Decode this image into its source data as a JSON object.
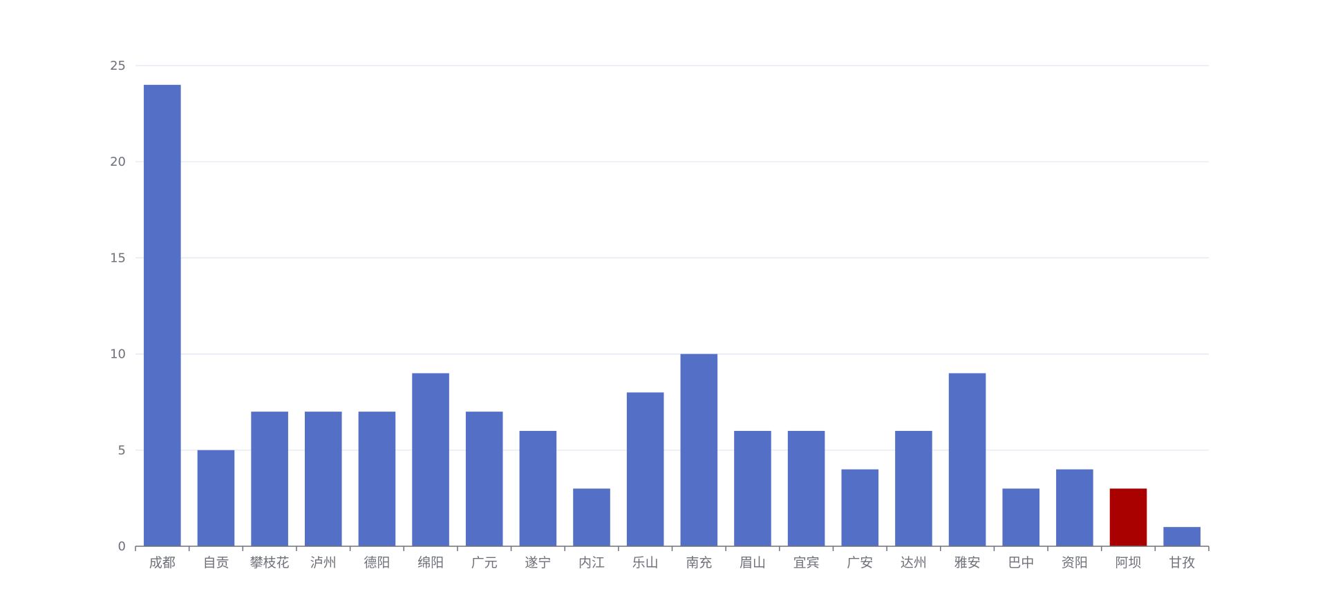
{
  "chart_data": {
    "type": "bar",
    "title": "",
    "xlabel": "",
    "ylabel": "",
    "categories": [
      "成都",
      "自贡",
      "攀枝花",
      "泸州",
      "德阳",
      "绵阳",
      "广元",
      "遂宁",
      "内江",
      "乐山",
      "南充",
      "眉山",
      "宜宾",
      "广安",
      "达州",
      "雅安",
      "巴中",
      "资阳",
      "阿坝",
      "甘孜"
    ],
    "values": [
      24,
      5,
      7,
      7,
      7,
      9,
      7,
      6,
      3,
      8,
      10,
      6,
      6,
      4,
      6,
      9,
      3,
      4,
      3,
      1
    ],
    "ylim": [
      0,
      25
    ],
    "yticks": [
      0,
      5,
      10,
      15,
      20,
      25
    ],
    "grid": true,
    "legend": "none",
    "bar_color": "#5470c6",
    "highlight_color": "#a90000",
    "highlight_category": "阿坝",
    "grid_color": "#e0e6f1",
    "axis_color": "#6e7079"
  }
}
